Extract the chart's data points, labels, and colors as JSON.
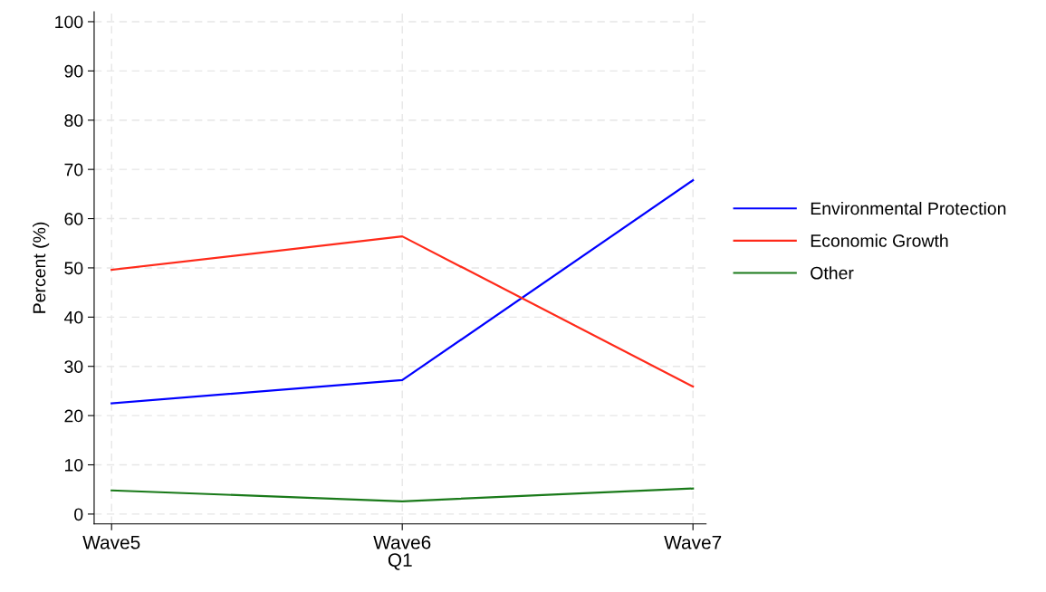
{
  "chart_data": {
    "type": "line",
    "xlabel": "Q1",
    "ylabel": "Percent (%)",
    "categories": [
      "Wave5",
      "Wave6",
      "Wave7"
    ],
    "series": [
      {
        "name": "Environmental Protection",
        "color": "#0000ff",
        "values": [
          22.5,
          27.2,
          67.8
        ]
      },
      {
        "name": "Economic Growth",
        "color": "#ff2a1a",
        "values": [
          49.6,
          56.4,
          25.9
        ]
      },
      {
        "name": "Other",
        "color": "#1a7a1a",
        "values": [
          4.8,
          2.6,
          5.2
        ]
      }
    ],
    "ylim": [
      -2,
      102
    ],
    "yticks": [
      0,
      10,
      20,
      30,
      40,
      50,
      60,
      70,
      80,
      90,
      100
    ],
    "grid": true,
    "legend": "right",
    "line_style": "solid",
    "marker": "none"
  }
}
